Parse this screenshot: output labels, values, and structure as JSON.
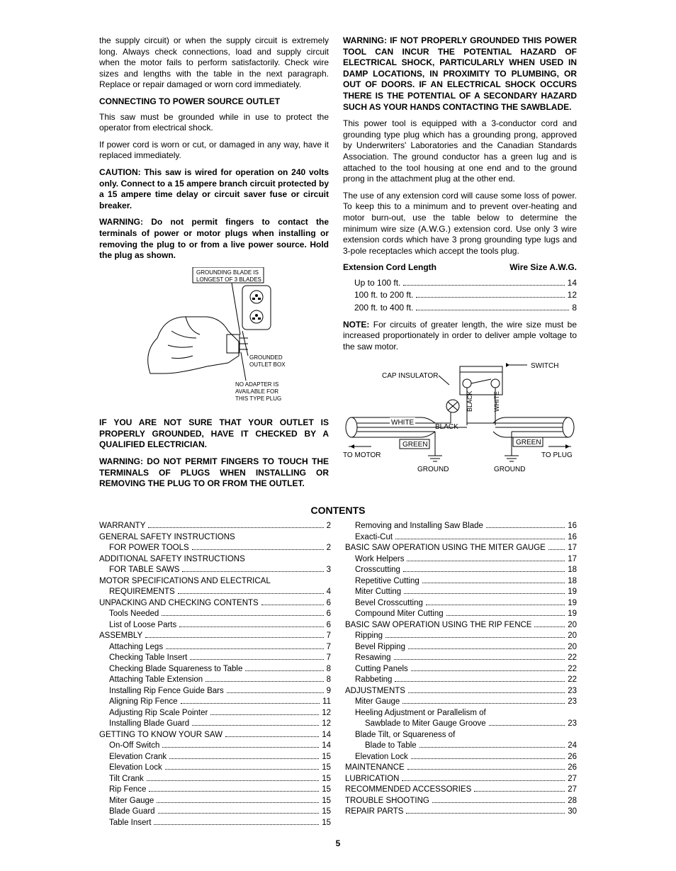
{
  "col1": {
    "p1": "the supply circuit) or when the supply circuit is extremely long. Always check connections, load and supply circuit when the motor fails to perform satisfactorily. Check wire sizes and lengths with the table in the next paragraph. Replace or repair damaged or worn cord immediately.",
    "h1": "CONNECTING TO POWER SOURCE OUTLET",
    "p2": "This saw must be grounded while in use to protect the operator from electrical shock.",
    "p3": "If power cord is worn or cut, or damaged in any way, have it replaced immediately.",
    "p4": "CAUTION: This saw is wired for operation on 240 volts only. Connect to a 15 ampere branch circuit protected by a 15 ampere time delay or circuit saver fuse or circuit breaker.",
    "p5": "WARNING: Do not permit fingers to contact the terminals of power or motor plugs when installing or removing the plug to or from a live power source. Hold the plug as shown.",
    "diag_t1": "GROUNDING BLADE IS",
    "diag_t2": "LONGEST OF 3 BLADES",
    "diag_t3": "GROUNDED",
    "diag_t4": "OUTLET BOX",
    "diag_t5": "NO ADAPTER IS",
    "diag_t6": "AVAILABLE FOR",
    "diag_t7": "THIS TYPE PLUG",
    "p6": "IF YOU ARE NOT SURE THAT YOUR OUTLET IS PROPERLY GROUNDED, HAVE IT CHECKED BY A QUALIFIED ELECTRICIAN.",
    "p7": "WARNING: DO NOT PERMIT FINGERS TO TOUCH THE TERMINALS OF PLUGS WHEN INSTALLING OR REMOVING THE PLUG TO OR FROM THE OUTLET."
  },
  "col2": {
    "p1": "WARNING: IF NOT PROPERLY GROUNDED THIS POWER TOOL CAN INCUR THE POTENTIAL HAZARD OF ELECTRICAL SHOCK, PARTICULARLY WHEN USED IN DAMP LOCATIONS, IN PROXIMITY TO PLUMBING, OR OUT OF DOORS. IF AN ELECTRICAL SHOCK OCCURS THERE IS THE POTENTIAL OF A SECONDARY HAZARD SUCH AS YOUR HANDS CONTACTING THE SAWBLADE.",
    "p2": "This power tool is equipped with a 3-conductor cord and grounding type plug which has a grounding prong, approved by Underwriters' Laboratories and the Canadian Standards Association. The ground conductor has a green lug and is attached to the tool housing at one end and to the ground prong in the attachment plug at the other end.",
    "p3": "The use of any extension cord will cause some loss of power. To keep this to a minimum and to prevent over-heating and motor burn-out, use the table below to determine the minimum wire size (A.W.G.) extension cord. Use only 3 wire extension cords which have 3 prong grounding type lugs and 3-pole receptacles which accept the tools plug.",
    "cord_h1": "Extension Cord Length",
    "cord_h2": "Wire Size A.W.G.",
    "cord_rows": [
      {
        "label": "Up to 100 ft.",
        "val": "14"
      },
      {
        "label": "100 ft. to 200 ft.",
        "val": "12"
      },
      {
        "label": "200 ft. to 400 ft.",
        "val": "8"
      }
    ],
    "p4_prefix": "NOTE:",
    "p4": " For circuits of greater length, the wire size must be increased proportionately in order to deliver ample voltage to the saw motor.",
    "wiring": {
      "switch": "SWITCH",
      "cap": "CAP INSULATOR",
      "black": "BLACK",
      "white": "WHITE",
      "white2": "WHITE",
      "black2": "BLACK",
      "green1": "GREEN",
      "green2": "GREEN",
      "tomotor": "TO MOTOR",
      "toplug": "TO PLUG",
      "ground1": "GROUND",
      "ground2": "GROUND"
    }
  },
  "contents_title": "CONTENTS",
  "toc_left": [
    {
      "label": "WARRANTY",
      "page": "2"
    },
    {
      "label": "GENERAL SAFETY INSTRUCTIONS",
      "nopage": true
    },
    {
      "label": "FOR POWER TOOLS",
      "page": "2",
      "sub": true
    },
    {
      "label": "ADDITIONAL SAFETY INSTRUCTIONS",
      "nopage": true
    },
    {
      "label": "FOR TABLE SAWS",
      "page": "3",
      "sub": true
    },
    {
      "label": "MOTOR SPECIFICATIONS AND ELECTRICAL",
      "nopage": true
    },
    {
      "label": "REQUIREMENTS",
      "page": "4",
      "sub": true
    },
    {
      "label": "UNPACKING AND CHECKING CONTENTS",
      "page": "6"
    },
    {
      "label": "Tools Needed",
      "page": "6",
      "sub": true
    },
    {
      "label": "List of Loose Parts",
      "page": "6",
      "sub": true
    },
    {
      "label": "ASSEMBLY",
      "page": "7"
    },
    {
      "label": "Attaching Legs",
      "page": "7",
      "sub": true
    },
    {
      "label": "Checking Table Insert",
      "page": "7",
      "sub": true
    },
    {
      "label": "Checking Blade Squareness to Table",
      "page": "8",
      "sub": true
    },
    {
      "label": "Attaching Table Extension",
      "page": "8",
      "sub": true
    },
    {
      "label": "Installing Rip Fence Guide Bars",
      "page": "9",
      "sub": true
    },
    {
      "label": "Aligning Rip Fence",
      "page": "11",
      "sub": true
    },
    {
      "label": "Adjusting Rip Scale Pointer",
      "page": "12",
      "sub": true
    },
    {
      "label": "Installing Blade Guard",
      "page": "12",
      "sub": true
    },
    {
      "label": "GETTING TO KNOW YOUR SAW",
      "page": "14"
    },
    {
      "label": "On-Off Switch",
      "page": "14",
      "sub": true
    },
    {
      "label": "Elevation Crank",
      "page": "15",
      "sub": true
    },
    {
      "label": "Elevation Lock",
      "page": "15",
      "sub": true
    },
    {
      "label": "Tilt Crank",
      "page": "15",
      "sub": true
    },
    {
      "label": "Rip Fence",
      "page": "15",
      "sub": true
    },
    {
      "label": "Miter Gauge",
      "page": "15",
      "sub": true
    },
    {
      "label": "Blade Guard",
      "page": "15",
      "sub": true
    },
    {
      "label": "Table Insert",
      "page": "15",
      "sub": true
    }
  ],
  "toc_right": [
    {
      "label": "Removing and Installing Saw Blade",
      "page": "16",
      "sub": true
    },
    {
      "label": "Exacti-Cut",
      "page": "16",
      "sub": true
    },
    {
      "label": "BASIC SAW OPERATION USING THE MITER GAUGE",
      "page": "17"
    },
    {
      "label": "Work Helpers",
      "page": "17",
      "sub": true
    },
    {
      "label": "Crosscutting",
      "page": "18",
      "sub": true
    },
    {
      "label": "Repetitive Cutting",
      "page": "18",
      "sub": true
    },
    {
      "label": "Miter Cutting",
      "page": "19",
      "sub": true
    },
    {
      "label": "Bevel Crosscutting",
      "page": "19",
      "sub": true
    },
    {
      "label": "Compound Miter Cutting",
      "page": "19",
      "sub": true
    },
    {
      "label": "BASIC SAW OPERATION USING THE RIP FENCE",
      "page": "20"
    },
    {
      "label": "Ripping",
      "page": "20",
      "sub": true
    },
    {
      "label": "Bevel Ripping",
      "page": "20",
      "sub": true
    },
    {
      "label": "Resawing",
      "page": "22",
      "sub": true
    },
    {
      "label": "Cutting Panels",
      "page": "22",
      "sub": true
    },
    {
      "label": "Rabbeting",
      "page": "22",
      "sub": true
    },
    {
      "label": "ADJUSTMENTS",
      "page": "23"
    },
    {
      "label": "Miter Gauge",
      "page": "23",
      "sub": true
    },
    {
      "label": "Heeling Adjustment or Parallelism of",
      "nopage": true,
      "sub": true
    },
    {
      "label": "Sawblade to Miter Gauge Groove",
      "page": "23",
      "subsub": true
    },
    {
      "label": "Blade Tilt, or Squareness of",
      "nopage": true,
      "sub": true
    },
    {
      "label": "Blade to Table",
      "page": "24",
      "subsub": true
    },
    {
      "label": "Elevation Lock",
      "page": "26",
      "sub": true
    },
    {
      "label": "MAINTENANCE",
      "page": "26"
    },
    {
      "label": "LUBRICATION",
      "page": "27"
    },
    {
      "label": "RECOMMENDED ACCESSORIES",
      "page": "27"
    },
    {
      "label": "TROUBLE SHOOTING",
      "page": "28"
    },
    {
      "label": "REPAIR PARTS",
      "page": "30"
    }
  ],
  "pagenum": "5"
}
